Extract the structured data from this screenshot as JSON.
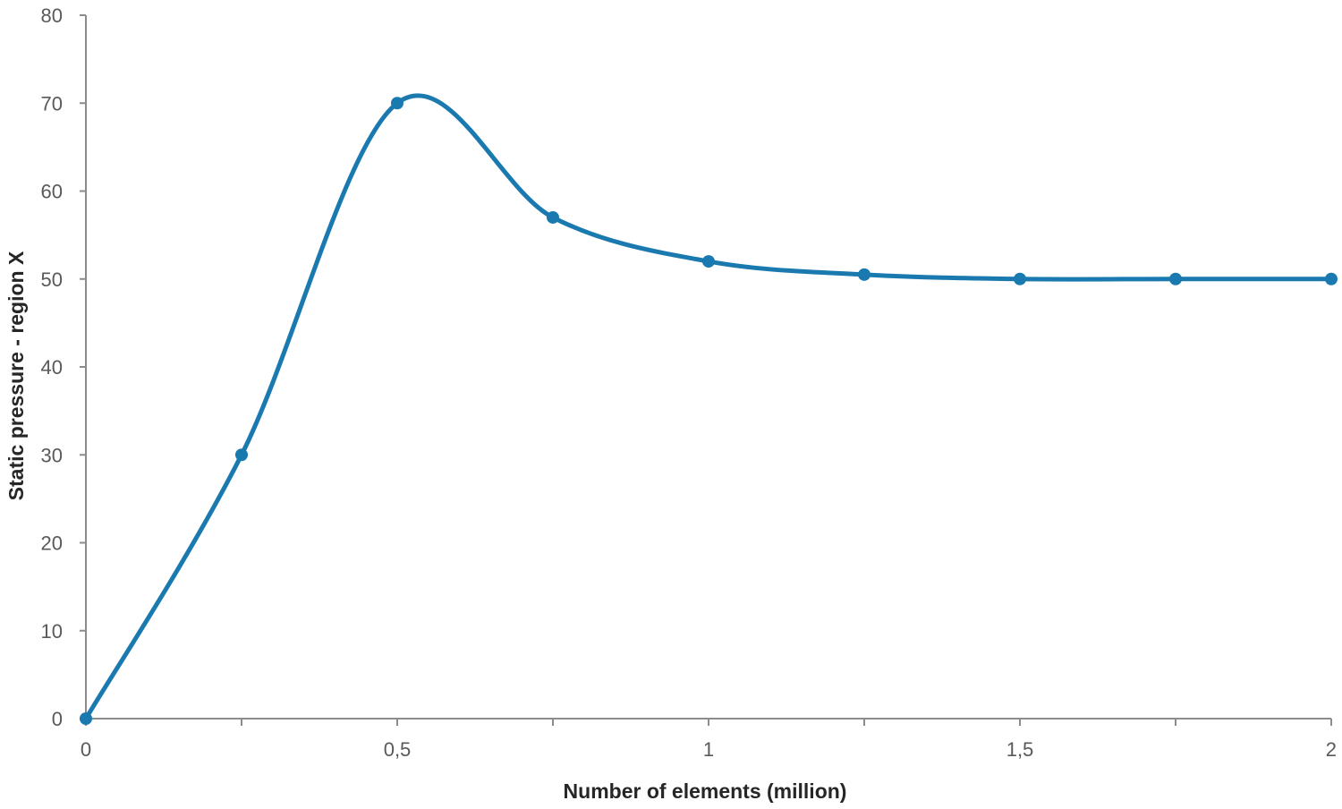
{
  "chart_data": {
    "type": "line",
    "title": "",
    "xlabel": "Number of elements (million)",
    "ylabel": "Static pressure - region X",
    "x": [
      0,
      0.25,
      0.5,
      0.75,
      1,
      1.25,
      1.5,
      1.75,
      2
    ],
    "series": [
      {
        "values": [
          0,
          30,
          70,
          57,
          52,
          50.5,
          50,
          50,
          50
        ],
        "color": "#1a7ab0"
      }
    ],
    "xlim": [
      0,
      2
    ],
    "ylim": [
      0,
      80
    ],
    "x_ticks": [
      0,
      0.25,
      0.5,
      0.75,
      1,
      1.25,
      1.5,
      1.75,
      2
    ],
    "x_tick_labels": [
      {
        "value": 0,
        "label": "0"
      },
      {
        "value": 0.5,
        "label": "0,5"
      },
      {
        "value": 1,
        "label": "1"
      },
      {
        "value": 1.5,
        "label": "1,5"
      },
      {
        "value": 2,
        "label": "2"
      }
    ],
    "y_tick_labels": [
      {
        "value": 0,
        "label": "0"
      },
      {
        "value": 10,
        "label": "10"
      },
      {
        "value": 20,
        "label": "20"
      },
      {
        "value": 30,
        "label": "30"
      },
      {
        "value": 40,
        "label": "40"
      },
      {
        "value": 50,
        "label": "50"
      },
      {
        "value": 60,
        "label": "60"
      },
      {
        "value": 70,
        "label": "70"
      },
      {
        "value": 80,
        "label": "80"
      }
    ],
    "smooth": true,
    "markers": true,
    "grid": false,
    "legend": "none"
  }
}
